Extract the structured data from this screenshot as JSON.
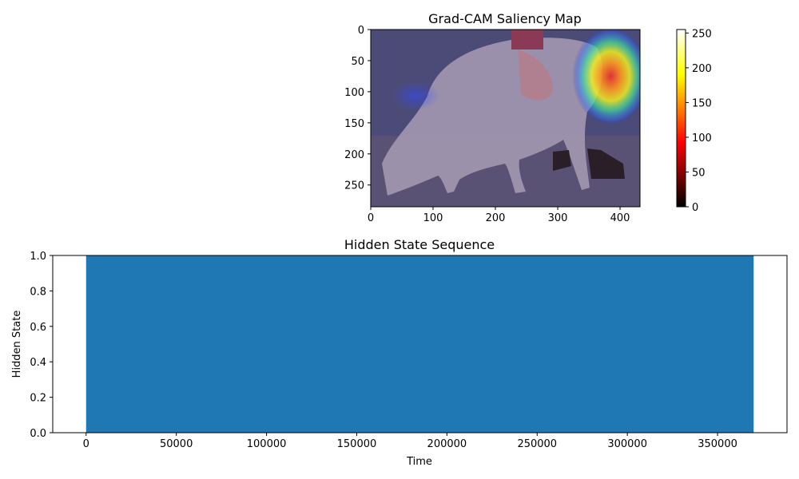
{
  "chart_data": [
    {
      "type": "heatmap",
      "title": "Grad-CAM Saliency Map",
      "image_description_hidden": null,
      "xlim": [
        0,
        432
      ],
      "ylim": [
        0,
        285
      ],
      "y_inverted": true,
      "x_ticks": [
        "0",
        "100",
        "200",
        "300",
        "400"
      ],
      "x_tick_values": [
        0,
        100,
        200,
        300,
        400
      ],
      "y_ticks": [
        "0",
        "50",
        "100",
        "150",
        "200",
        "250"
      ],
      "y_tick_values": [
        0,
        50,
        100,
        150,
        200,
        250
      ],
      "colorbar": {
        "colormap": "hot",
        "range": [
          0,
          255
        ],
        "ticks": [
          "0",
          "50",
          "100",
          "150",
          "200",
          "250"
        ],
        "tick_values": [
          0,
          50,
          100,
          150,
          200,
          250
        ]
      },
      "hotspot": {
        "x": 385,
        "y": 75,
        "peak_value": 255
      },
      "overlay_colormap": "jet",
      "base_color": "#4a4a7c"
    },
    {
      "type": "bar",
      "title": "Hidden State Sequence",
      "xlabel": "Time",
      "ylabel": "Hidden State",
      "x_start": 0,
      "x_end": 370000,
      "value": 1.0,
      "color": "#1f77b4",
      "xlim": [
        -18500,
        388500
      ],
      "ylim": [
        0,
        1
      ],
      "x_ticks": [
        "0",
        "50000",
        "100000",
        "150000",
        "200000",
        "250000",
        "300000",
        "350000"
      ],
      "x_tick_values": [
        0,
        50000,
        100000,
        150000,
        200000,
        250000,
        300000,
        350000
      ],
      "y_ticks": [
        "0.0",
        "0.2",
        "0.4",
        "0.6",
        "0.8",
        "1.0"
      ],
      "y_tick_values": [
        0,
        0.2,
        0.4,
        0.6,
        0.8,
        1.0
      ]
    }
  ]
}
